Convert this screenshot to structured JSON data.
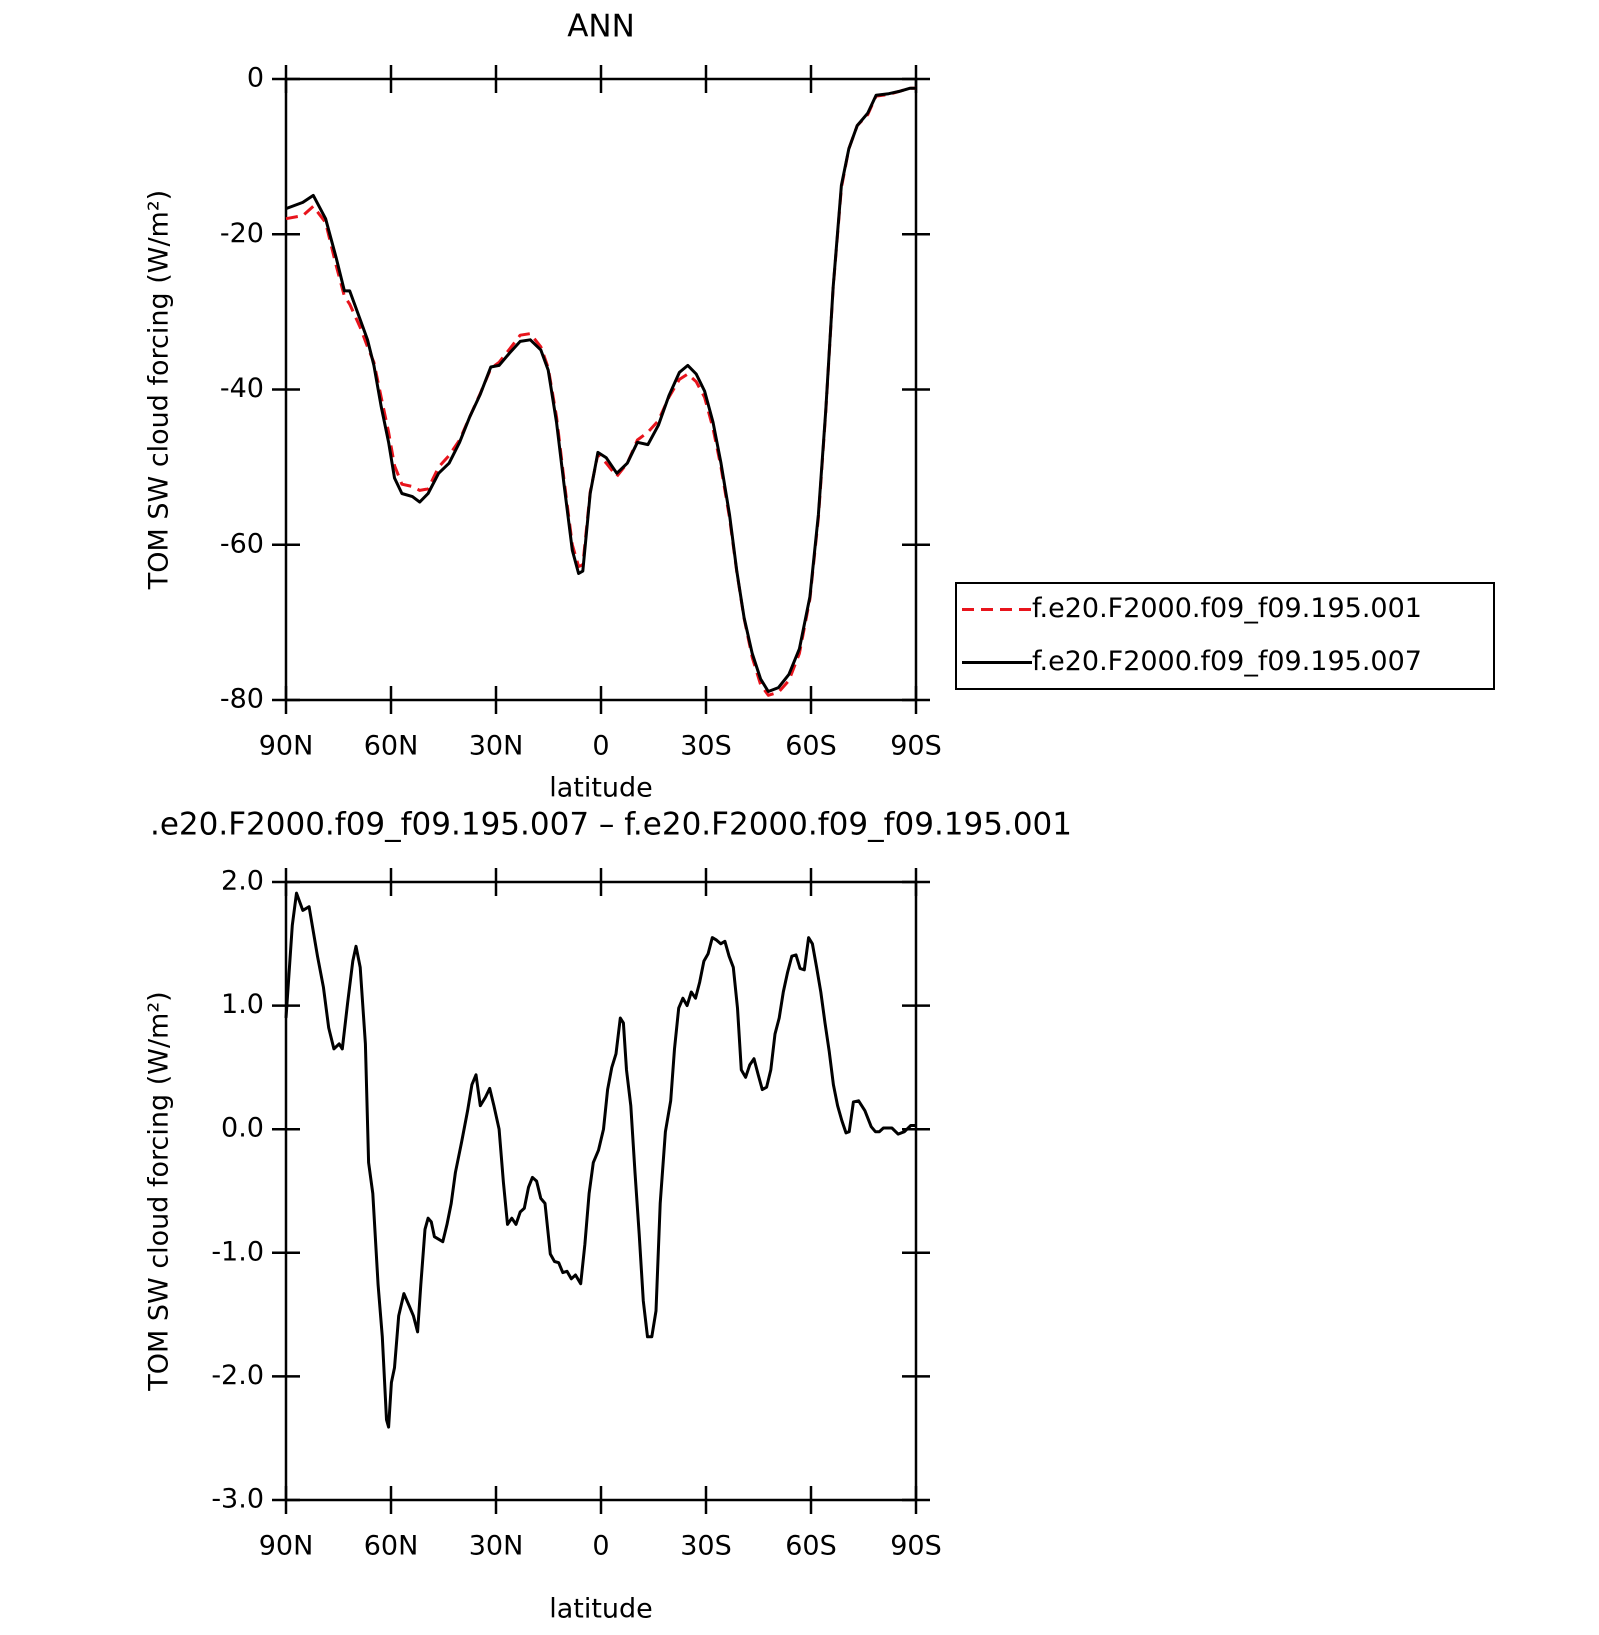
{
  "chart_data": [
    {
      "type": "line",
      "title": "ANN",
      "x_label": "latitude",
      "y_label": "TOM SW cloud forcing (W/m²)",
      "x": [
        90,
        85.2,
        82.2,
        78.7,
        75.7,
        73.3,
        71.8,
        68.8,
        66.7,
        64.9,
        62.8,
        60.7,
        59,
        56.9,
        53.9,
        51.8,
        49.4,
        46.4,
        43.4,
        40.4,
        37.5,
        34.5,
        31.5,
        29.1,
        26.1,
        23.1,
        20.2,
        17.2,
        15.1,
        12.7,
        10.6,
        8.2,
        6.4,
        5.2,
        3.1,
        0.9,
        -1.5,
        -4.5,
        -7.5,
        -10.4,
        -13.4,
        -16.4,
        -19.4,
        -22.4,
        -24.8,
        -27.2,
        -29.6,
        -32,
        -34.3,
        -36.7,
        -38.8,
        -40.9,
        -43.2,
        -45.6,
        -47.8,
        -50.7,
        -53.7,
        -56.7,
        -59.7,
        -62.1,
        -64.2,
        -66.3,
        -68.7,
        -70.8,
        -73.2,
        -76.2,
        -78.6,
        -82.2,
        -85.2,
        -88.2,
        -90
      ],
      "series": [
        {
          "name": "f.e20.F2000.f09_f09.195.001",
          "color": "#e8141c",
          "line_style": "dashed",
          "values": [
            -18,
            -17.6,
            -16.4,
            -18.5,
            -24,
            -28,
            -29,
            -32,
            -34.5,
            -36.5,
            -41,
            -45.5,
            -49.8,
            -52.2,
            -52.5,
            -53,
            -52.8,
            -50,
            -48.5,
            -46.5,
            -43.5,
            -40.5,
            -37.3,
            -36.5,
            -34.8,
            -33,
            -32.8,
            -34.5,
            -37.2,
            -43.5,
            -51.5,
            -60,
            -62.8,
            -62.6,
            -53.2,
            -48.3,
            -49.5,
            -51.2,
            -49.5,
            -46.5,
            -45.5,
            -44,
            -41,
            -38.7,
            -38,
            -39,
            -41,
            -45,
            -50,
            -56.5,
            -63.5,
            -69.5,
            -74.5,
            -78,
            -79.4,
            -79,
            -77.5,
            -74,
            -67,
            -56.5,
            -43,
            -27,
            -14,
            -9,
            -6,
            -4.6,
            -2.2,
            -2,
            -1.6,
            -1.2,
            -1.2
          ]
        },
        {
          "name": "f.e20.F2000.f09_f09.195.007",
          "color": "#000000",
          "line_style": "solid",
          "values": [
            -16.7,
            -15.9,
            -15,
            -18,
            -23,
            -27.3,
            -27.3,
            -31,
            -33.6,
            -36.9,
            -42.2,
            -46.8,
            -51.4,
            -53.4,
            -53.8,
            -54.5,
            -53.4,
            -50.8,
            -49.5,
            -46.8,
            -43.5,
            -40.6,
            -37.1,
            -36.9,
            -35.3,
            -33.8,
            -33.6,
            -34.9,
            -37.5,
            -44.2,
            -52.1,
            -60.7,
            -63.7,
            -63.4,
            -53.4,
            -48.1,
            -48.8,
            -50.8,
            -49.5,
            -46.8,
            -47.1,
            -44.6,
            -40.8,
            -37.8,
            -36.9,
            -38,
            -40.2,
            -44.2,
            -49.5,
            -56.1,
            -63.4,
            -69.4,
            -74,
            -77.3,
            -78.9,
            -78.4,
            -76.7,
            -73.4,
            -66.7,
            -56.1,
            -42.8,
            -26.9,
            -13.7,
            -9,
            -6,
            -4.4,
            -2.1,
            -1.9,
            -1.6,
            -1.2,
            -1.2
          ]
        }
      ],
      "xlim": [
        90,
        -90
      ],
      "xticks": [
        {
          "value": 90,
          "label": "90N"
        },
        {
          "value": 60,
          "label": "60N"
        },
        {
          "value": 30,
          "label": "30N"
        },
        0,
        {
          "value": -30,
          "label": "30S"
        },
        {
          "value": -60,
          "label": "60S"
        },
        {
          "value": -90,
          "label": "90S"
        }
      ],
      "ylim": [
        -80,
        0
      ],
      "yticks": [
        0,
        -20,
        -40,
        -60,
        -80
      ],
      "legend": "right",
      "grid": false
    },
    {
      "type": "line",
      "title": ".e20.F2000.f09_f09.195.007 – f.e20.F2000.f09_f09.195.001",
      "x_label": "latitude",
      "y_label": "TOM SW cloud forcing (W/m²)",
      "x": [
        90,
        88.2,
        87.0,
        85.2,
        83.4,
        81.0,
        79.3,
        77.8,
        76.3,
        74.8,
        73.9,
        72.4,
        70.9,
        70.0,
        68.8,
        67.3,
        66.4,
        65.2,
        63.7,
        62.5,
        61.3,
        60.7,
        59.9,
        59.0,
        57.8,
        56.3,
        54.8,
        53.6,
        52.4,
        51.5,
        50.3,
        49.4,
        48.5,
        47.6,
        46.4,
        45.2,
        44.0,
        42.8,
        41.6,
        39.8,
        38.1,
        36.9,
        35.7,
        34.5,
        33.0,
        31.8,
        30.6,
        29.1,
        27.9,
        26.7,
        25.5,
        24.3,
        23.1,
        21.9,
        20.7,
        19.6,
        18.4,
        17.2,
        16.0,
        14.5,
        13.3,
        12.1,
        10.9,
        9.7,
        8.5,
        7.3,
        5.8,
        4.6,
        3.4,
        2.2,
        0.7,
        -0.7,
        -1.9,
        -3.1,
        -4.3,
        -5.5,
        -6.4,
        -7.3,
        -8.5,
        -9.7,
        -10.9,
        -12.1,
        -13.3,
        -14.5,
        -15.7,
        -16.9,
        -18.4,
        -19.9,
        -21.0,
        -22.2,
        -23.4,
        -24.6,
        -25.8,
        -27.0,
        -28.2,
        -29.4,
        -30.6,
        -31.8,
        -33.0,
        -34.2,
        -35.4,
        -36.6,
        -37.8,
        -39.0,
        -40.1,
        -41.3,
        -42.5,
        -43.7,
        -44.9,
        -46.1,
        -47.3,
        -48.5,
        -49.7,
        -50.9,
        -52.1,
        -53.3,
        -54.5,
        -55.7,
        -56.9,
        -58.1,
        -59.3,
        -60.4,
        -61.6,
        -62.8,
        -64.0,
        -65.2,
        -66.4,
        -67.6,
        -68.8,
        -70.0,
        -70.9,
        -72.1,
        -73.6,
        -75.4,
        -77.2,
        -78.4,
        -79.5,
        -80.7,
        -81.9,
        -83.1,
        -84.9,
        -86.7,
        -88.5,
        -90
      ],
      "series": [
        {
          "color": "#000000",
          "line_style": "solid",
          "values": [
            0.9,
            1.65,
            1.91,
            1.77,
            1.8,
            1.4,
            1.15,
            0.82,
            0.65,
            0.69,
            0.65,
            1.02,
            1.36,
            1.48,
            1.31,
            0.69,
            -0.27,
            -0.52,
            -1.26,
            -1.68,
            -2.35,
            -2.41,
            -2.05,
            -1.93,
            -1.51,
            -1.33,
            -1.43,
            -1.51,
            -1.64,
            -1.26,
            -0.81,
            -0.72,
            -0.75,
            -0.87,
            -0.89,
            -0.91,
            -0.77,
            -0.6,
            -0.35,
            -0.1,
            0.15,
            0.36,
            0.44,
            0.19,
            0.26,
            0.33,
            0.19,
            0,
            -0.43,
            -0.77,
            -0.72,
            -0.77,
            -0.67,
            -0.64,
            -0.47,
            -0.39,
            -0.42,
            -0.56,
            -0.6,
            -1.01,
            -1.07,
            -1.08,
            -1.16,
            -1.15,
            -1.21,
            -1.18,
            -1.25,
            -0.93,
            -0.52,
            -0.27,
            -0.17,
            0,
            0.32,
            0.5,
            0.61,
            0.9,
            0.86,
            0.48,
            0.19,
            -0.35,
            -0.85,
            -1.39,
            -1.68,
            -1.68,
            -1.47,
            -0.6,
            -0.02,
            0.23,
            0.65,
            0.98,
            1.06,
            1.0,
            1.11,
            1.06,
            1.19,
            1.36,
            1.42,
            1.55,
            1.53,
            1.5,
            1.52,
            1.4,
            1.31,
            0.98,
            0.48,
            0.42,
            0.52,
            0.57,
            0.44,
            0.32,
            0.34,
            0.48,
            0.77,
            0.9,
            1.11,
            1.27,
            1.4,
            1.41,
            1.3,
            1.29,
            1.55,
            1.5,
            1.31,
            1.11,
            0.86,
            0.63,
            0.36,
            0.19,
            0.07,
            -0.03,
            -0.02,
            0.22,
            0.23,
            0.15,
            0.02,
            -0.02,
            -0.02,
            0.01,
            0.01,
            0.01,
            -0.04,
            -0.02,
            0.03,
            0.03
          ]
        }
      ],
      "xlim": [
        90,
        -90
      ],
      "xticks": [
        {
          "value": 90,
          "label": "90N"
        },
        {
          "value": 60,
          "label": "60N"
        },
        {
          "value": 30,
          "label": "30N"
        },
        0,
        {
          "value": -30,
          "label": "30S"
        },
        {
          "value": -60,
          "label": "60S"
        },
        {
          "value": -90,
          "label": "90S"
        }
      ],
      "ylim": [
        -3,
        2
      ],
      "yticks": [
        {
          "value": 2,
          "label": "2.0"
        },
        {
          "value": 1,
          "label": "1.0"
        },
        {
          "value": 0,
          "label": "0.0"
        },
        {
          "value": -1,
          "label": "-1.0"
        },
        {
          "value": -2,
          "label": "-2.0"
        },
        {
          "value": -3,
          "label": "-3.0"
        }
      ],
      "grid": false
    }
  ]
}
